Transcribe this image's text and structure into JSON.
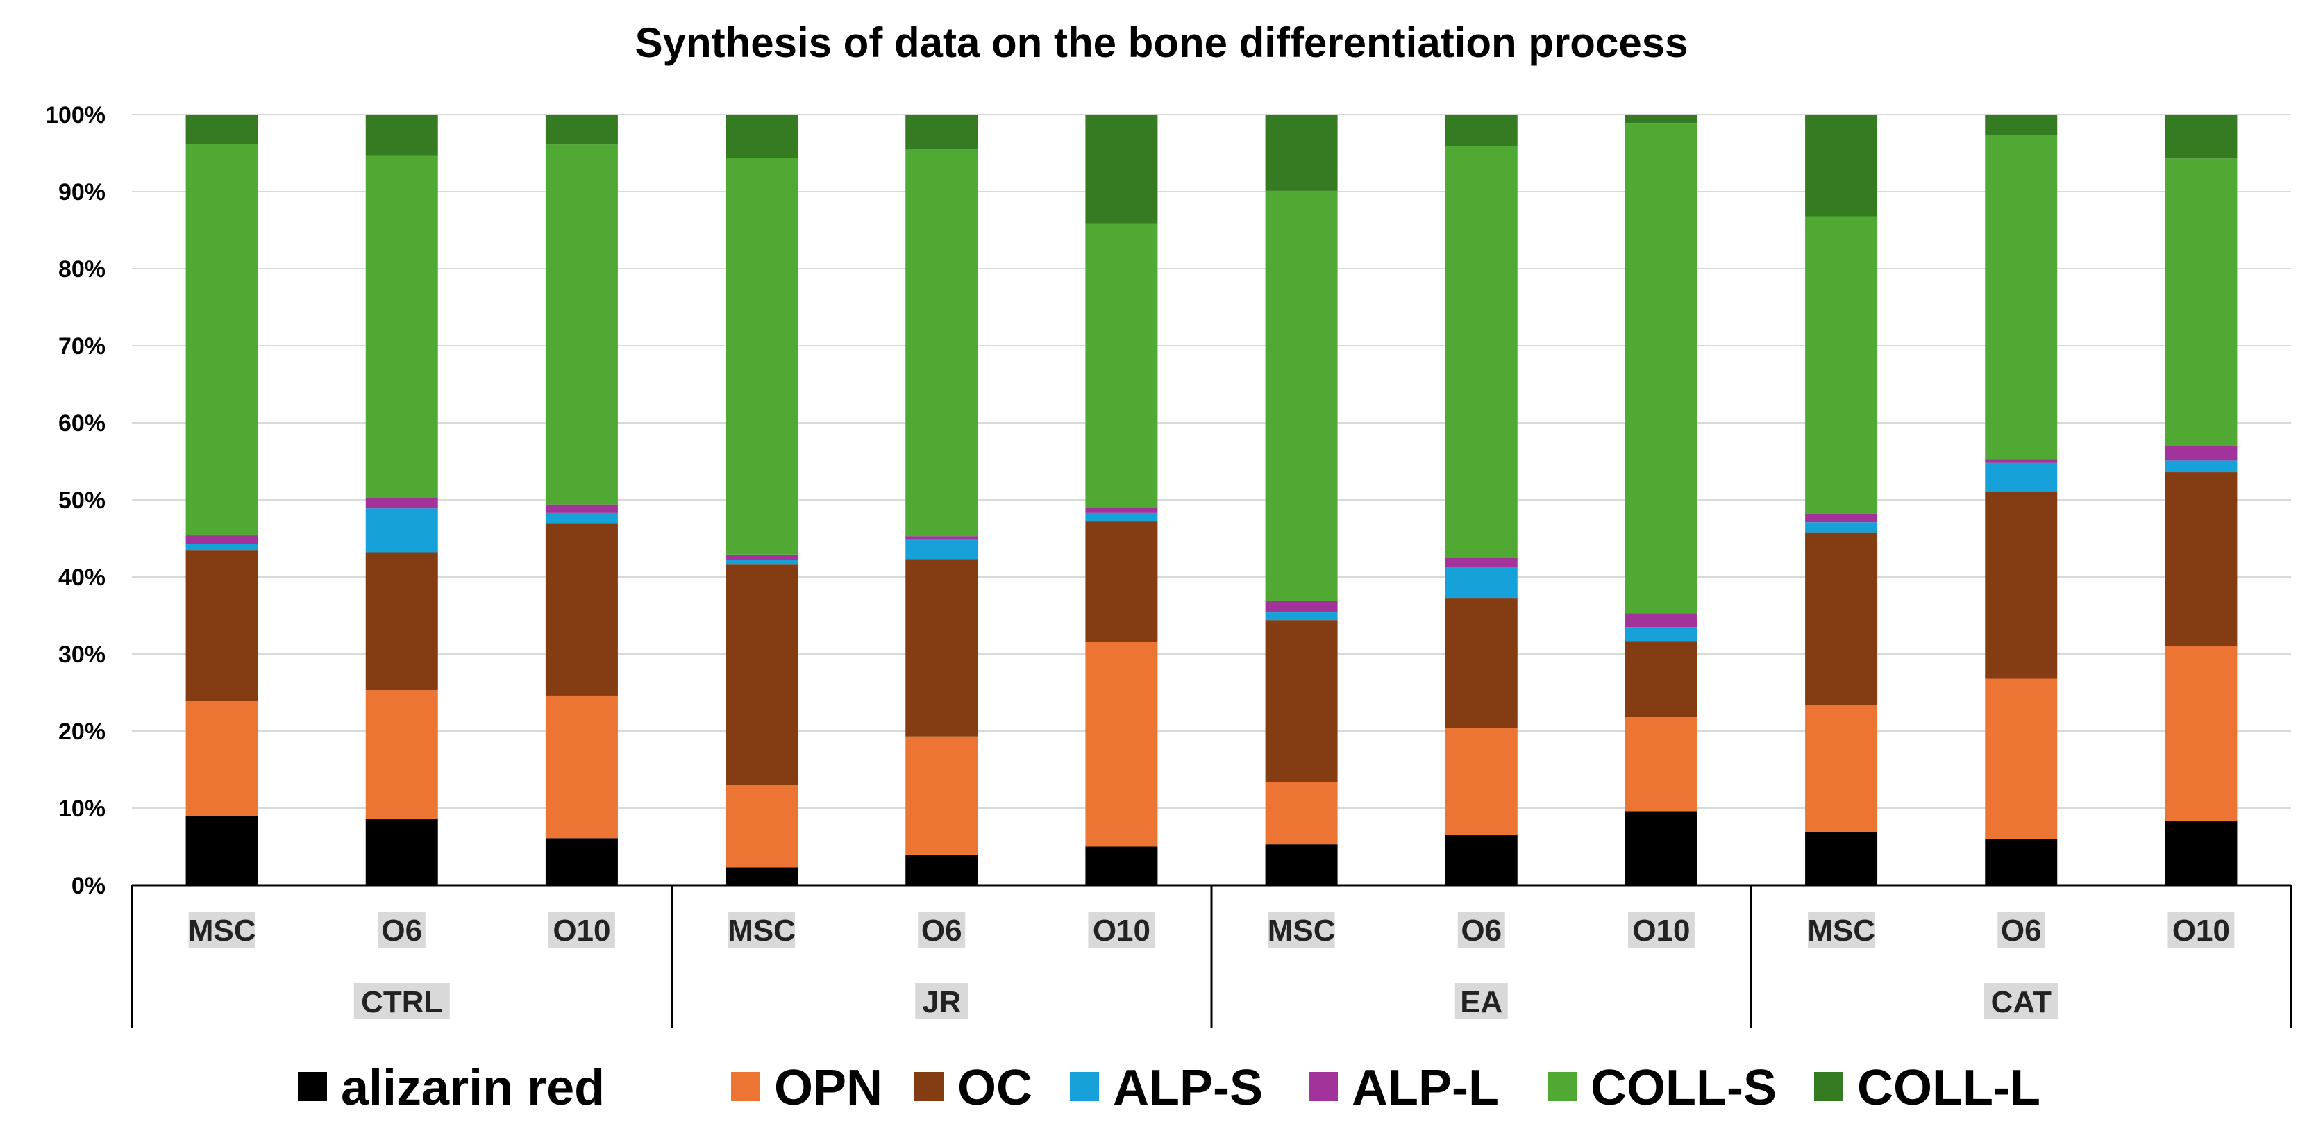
{
  "chart_data": {
    "type": "bar",
    "stacked": true,
    "percent": true,
    "title": "Synthesis of data on the bone differentiation process",
    "xlabel": "",
    "ylabel": "",
    "ylim": [
      0,
      100
    ],
    "yticks": [
      "0%",
      "10%",
      "20%",
      "30%",
      "40%",
      "50%",
      "60%",
      "70%",
      "80%",
      "90%",
      "100%"
    ],
    "grid": true,
    "legend_position": "bottom",
    "groups": [
      {
        "name": "CTRL",
        "categories": [
          "MSC",
          "O6",
          "O10"
        ]
      },
      {
        "name": "JR",
        "categories": [
          "MSC",
          "O6",
          "O10"
        ]
      },
      {
        "name": "EA",
        "categories": [
          "MSC",
          "O6",
          "O10"
        ]
      },
      {
        "name": "CAT",
        "categories": [
          "MSC",
          "O6",
          "O10"
        ]
      }
    ],
    "series": [
      {
        "name": "alizarin red",
        "color": "#000000",
        "values": [
          9.0,
          8.6,
          6.1,
          2.3,
          3.9,
          5.0,
          5.3,
          6.5,
          9.6,
          6.9,
          6.0,
          8.3
        ]
      },
      {
        "name": "OPN",
        "color": "#ED7534",
        "values": [
          14.9,
          16.7,
          18.5,
          10.7,
          15.4,
          26.6,
          8.1,
          13.9,
          12.2,
          16.5,
          20.8,
          22.7
        ]
      },
      {
        "name": "OC",
        "color": "#843C12",
        "values": [
          19.6,
          17.9,
          22.3,
          28.6,
          23.0,
          15.6,
          21.0,
          16.8,
          9.9,
          22.4,
          24.2,
          22.6
        ]
      },
      {
        "name": "ALP-S",
        "color": "#16A2D9",
        "values": [
          0.8,
          5.7,
          1.4,
          0.6,
          2.6,
          1.1,
          1.0,
          4.1,
          1.8,
          1.3,
          3.8,
          1.5
        ]
      },
      {
        "name": "ALP-L",
        "color": "#A1339A",
        "values": [
          1.1,
          1.3,
          1.1,
          0.7,
          0.4,
          0.7,
          1.5,
          1.2,
          1.8,
          1.1,
          0.5,
          1.9
        ]
      },
      {
        "name": "COLL-S",
        "color": "#50A932",
        "values": [
          50.8,
          44.5,
          46.7,
          51.5,
          50.2,
          36.9,
          53.2,
          53.4,
          63.6,
          38.6,
          42.0,
          37.3
        ]
      },
      {
        "name": "COLL-L",
        "color": "#357B22",
        "values": [
          3.8,
          5.3,
          3.9,
          5.6,
          4.5,
          14.1,
          9.9,
          4.1,
          1.1,
          13.2,
          2.7,
          5.7
        ]
      }
    ]
  }
}
